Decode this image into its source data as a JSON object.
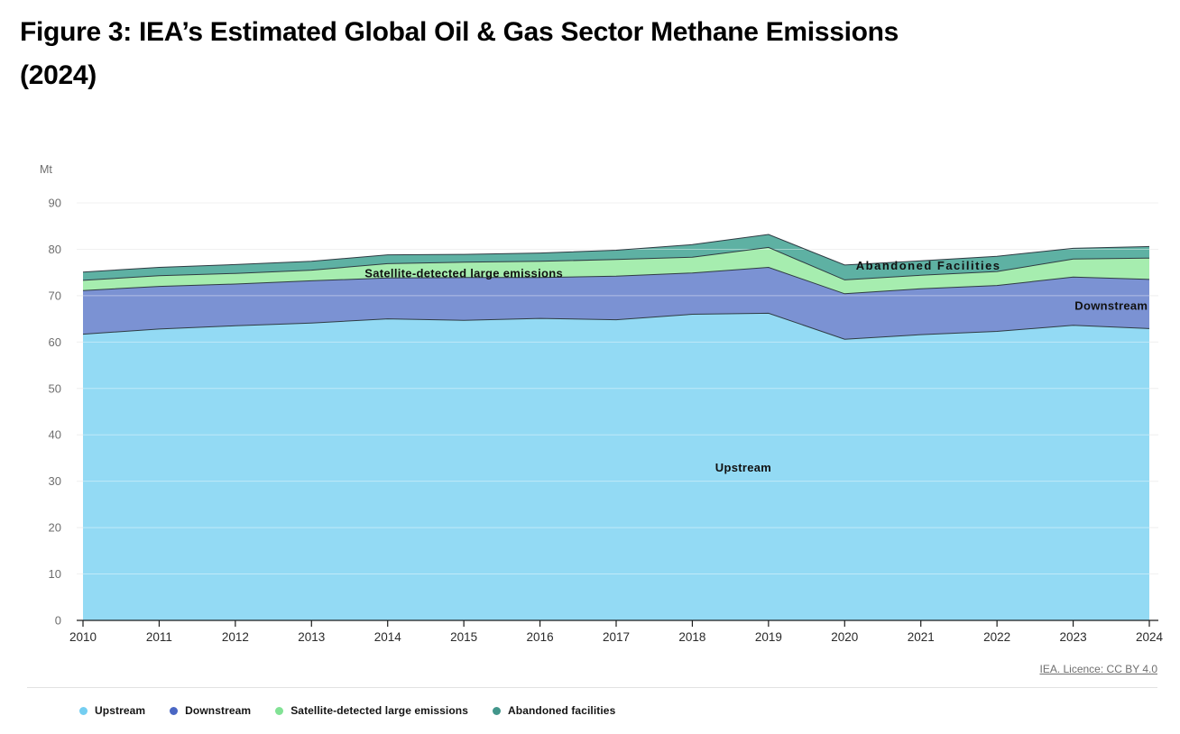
{
  "header": {
    "title_lines": [
      "Figure 3: IEA’s Estimated Global Oil & Gas Sector Methane Emissions",
      "(2024)"
    ]
  },
  "footer": {
    "source_link": "IEA. Licence: CC BY 4.0"
  },
  "chart_data": {
    "type": "area",
    "stacked": true,
    "title": "",
    "unit_label": "Mt",
    "xlabel": "",
    "ylabel": "Mt",
    "ylim": [
      0,
      90
    ],
    "yticks": [
      0,
      10,
      20,
      30,
      40,
      50,
      60,
      70,
      80,
      90
    ],
    "grid": true,
    "legend_position": "bottom",
    "x": [
      2010,
      2011,
      2012,
      2013,
      2014,
      2015,
      2016,
      2017,
      2018,
      2019,
      2020,
      2021,
      2022,
      2023,
      2024
    ],
    "series": [
      {
        "name": "Upstream",
        "color": "#93DAF4",
        "legend_color": "#74CEF1",
        "values": [
          61.7,
          62.8,
          63.5,
          64.1,
          65.0,
          64.7,
          65.1,
          64.8,
          66.0,
          66.2,
          60.6,
          61.6,
          62.3,
          63.6,
          62.9
        ]
      },
      {
        "name": "Downstream",
        "color": "#7B92D3",
        "legend_color": "#4A67C4",
        "values": [
          9.4,
          9.2,
          9.0,
          9.1,
          8.8,
          9.2,
          8.8,
          9.4,
          8.9,
          9.9,
          9.8,
          9.9,
          9.9,
          10.4,
          10.6
        ]
      },
      {
        "name": "Satellite-detected large emissions",
        "color": "#A6EDAF",
        "legend_color": "#82E295",
        "values": [
          2.2,
          2.3,
          2.3,
          2.3,
          3.1,
          3.3,
          3.5,
          3.6,
          3.4,
          4.3,
          3.0,
          2.9,
          3.0,
          3.9,
          4.6
        ]
      },
      {
        "name": "Abandoned facilities",
        "color": "#5EB1A3",
        "legend_color": "#42968B",
        "values": [
          1.8,
          1.8,
          1.9,
          1.9,
          1.9,
          1.7,
          1.8,
          2.0,
          2.7,
          2.8,
          3.2,
          3.1,
          3.3,
          2.3,
          2.5
        ]
      }
    ],
    "annotations": [
      {
        "text": "Satellite-detected large emissions",
        "year": 2015.0,
        "value": 74.6,
        "letter_spacing": 0.3
      },
      {
        "text": "Abandoned Facilities",
        "year": 2021.1,
        "value": 76.3,
        "letter_spacing": 1.5
      },
      {
        "text": "Downstream",
        "year": 2023.5,
        "value": 67.6,
        "letter_spacing": 0.3
      },
      {
        "text": "Upstream",
        "year": 2018.67,
        "value": 32.7,
        "letter_spacing": 0.3
      }
    ]
  }
}
